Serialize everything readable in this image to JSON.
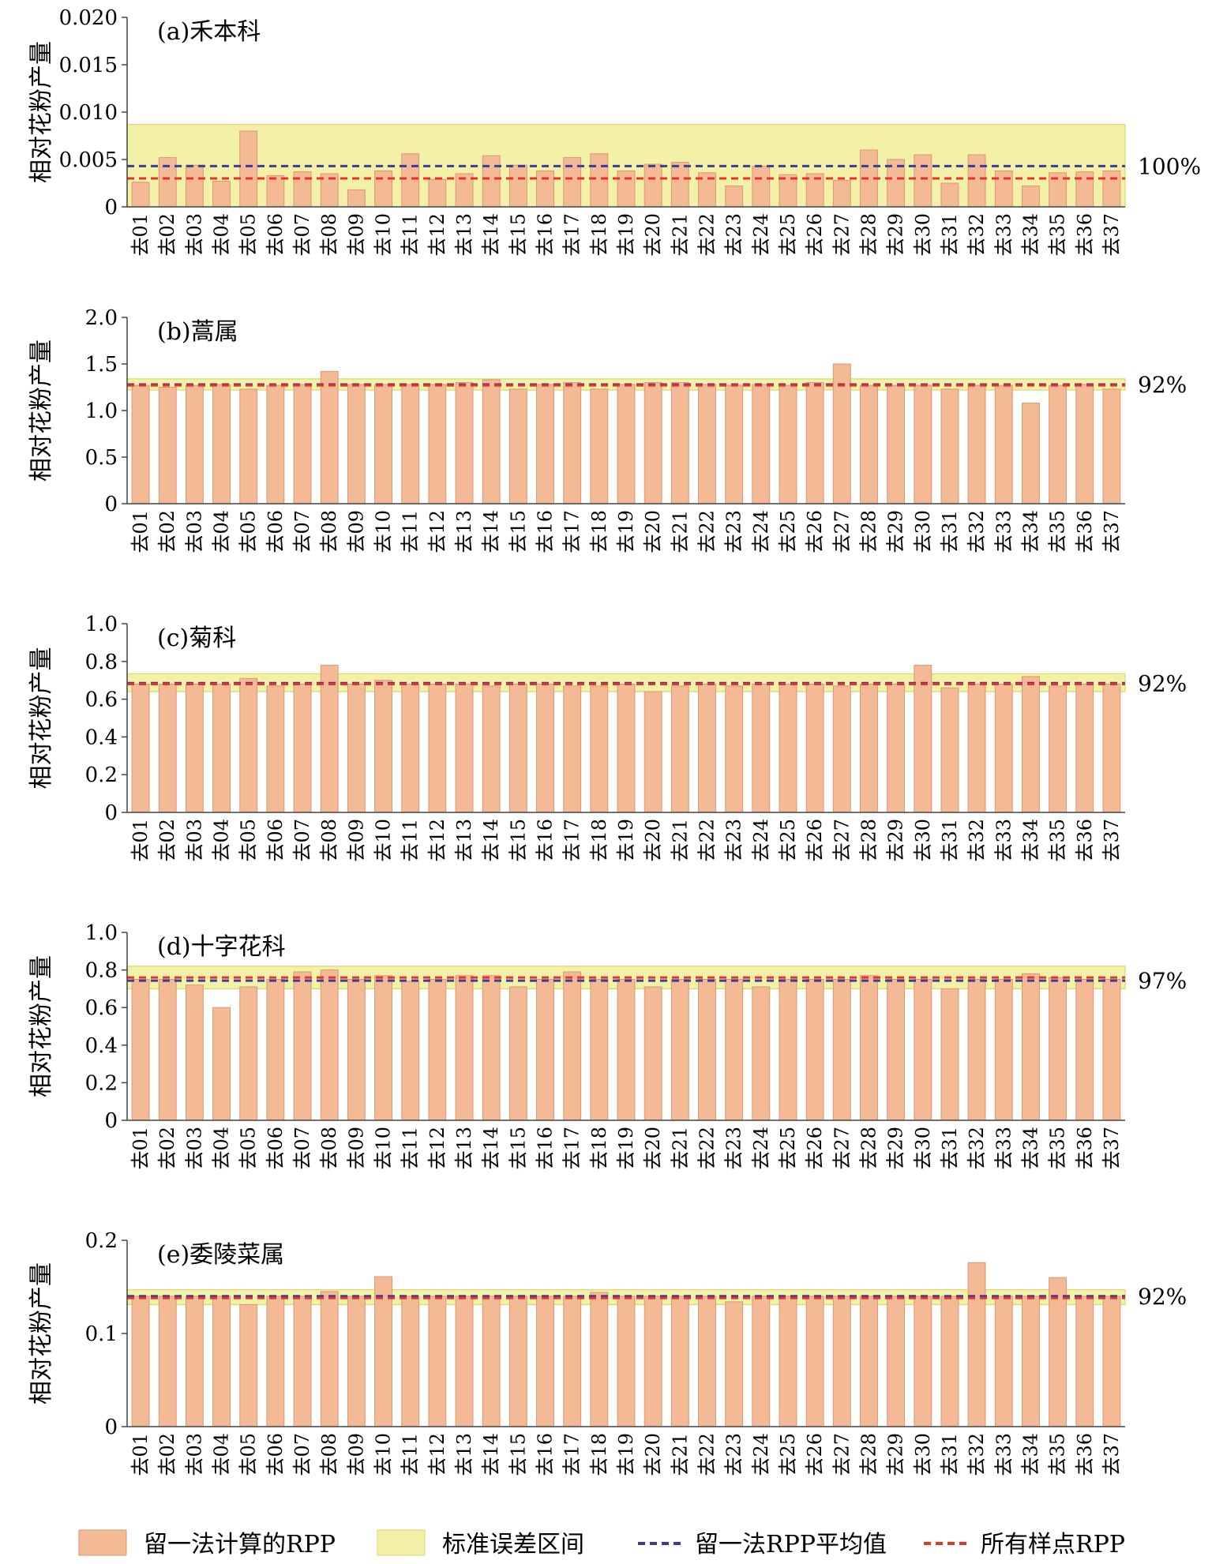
{
  "colors": {
    "bar": "#f4b995",
    "bar_edge": "#d99870",
    "band": "#f3f0a8",
    "band_edge": "#dcd86e",
    "mean_line": "#3a3c98",
    "all_line": "#e83428",
    "axis": "#444444"
  },
  "legend": {
    "bar_label": "留一法计算的RPP",
    "band_label": "标准误差区间",
    "mean_label": "留一法RPP平均值",
    "all_label": "所有样点RPP"
  },
  "chart_data": [
    {
      "type": "bar",
      "title": "(a)禾本科",
      "ylabel": "相对花粉产量",
      "ylim": [
        0,
        0.02
      ],
      "yticks": [
        "0",
        "0.005",
        "0.010",
        "0.015",
        "0.020"
      ],
      "ytick_values": [
        0,
        0.005,
        0.01,
        0.015,
        0.02
      ],
      "percent_label": "100%",
      "categories": [
        "去01",
        "去02",
        "去03",
        "去04",
        "去05",
        "去06",
        "去07",
        "去08",
        "去09",
        "去10",
        "去11",
        "去12",
        "去13",
        "去14",
        "去15",
        "去16",
        "去17",
        "去18",
        "去19",
        "去20",
        "去21",
        "去22",
        "去23",
        "去24",
        "去25",
        "去26",
        "去27",
        "去28",
        "去29",
        "去30",
        "去31",
        "去32",
        "去33",
        "去34",
        "去35",
        "去36",
        "去37"
      ],
      "values": [
        0.0026,
        0.0052,
        0.0044,
        0.0027,
        0.008,
        0.0033,
        0.0037,
        0.0035,
        0.0018,
        0.0038,
        0.0056,
        0.0029,
        0.0035,
        0.0054,
        0.0044,
        0.0038,
        0.0052,
        0.0056,
        0.0038,
        0.0045,
        0.0047,
        0.0036,
        0.0022,
        0.0043,
        0.0034,
        0.0035,
        0.0028,
        0.006,
        0.005,
        0.0055,
        0.0025,
        0.0055,
        0.0038,
        0.0022,
        0.0036,
        0.0037,
        0.0038
      ],
      "mean_rpp": 0.0043,
      "all_sites_rpp": 0.003,
      "se_band": [
        0,
        0.0087
      ]
    },
    {
      "type": "bar",
      "title": "(b)蒿属",
      "ylabel": "相对花粉产量",
      "ylim": [
        0,
        2.0
      ],
      "yticks": [
        "0",
        "0.5",
        "1.0",
        "1.5",
        "2.0"
      ],
      "ytick_values": [
        0,
        0.5,
        1.0,
        1.5,
        2.0
      ],
      "percent_label": "92%",
      "categories": [
        "去01",
        "去02",
        "去03",
        "去04",
        "去05",
        "去06",
        "去07",
        "去08",
        "去09",
        "去10",
        "去11",
        "去12",
        "去13",
        "去14",
        "去15",
        "去16",
        "去17",
        "去18",
        "去19",
        "去20",
        "去21",
        "去22",
        "去23",
        "去24",
        "去25",
        "去26",
        "去27",
        "去28",
        "去29",
        "去30",
        "去31",
        "去32",
        "去33",
        "去34",
        "去35",
        "去36",
        "去37"
      ],
      "values": [
        1.27,
        1.25,
        1.27,
        1.28,
        1.23,
        1.27,
        1.28,
        1.42,
        1.28,
        1.28,
        1.28,
        1.28,
        1.3,
        1.33,
        1.23,
        1.28,
        1.3,
        1.23,
        1.28,
        1.3,
        1.3,
        1.28,
        1.27,
        1.28,
        1.27,
        1.3,
        1.5,
        1.27,
        1.27,
        1.27,
        1.23,
        1.27,
        1.27,
        1.08,
        1.27,
        1.28,
        1.23
      ],
      "mean_rpp": 1.28,
      "all_sites_rpp": 1.27,
      "se_band": [
        1.22,
        1.34
      ]
    },
    {
      "type": "bar",
      "title": "(c)菊科",
      "ylabel": "相对花粉产量",
      "ylim": [
        0,
        1.0
      ],
      "yticks": [
        "0",
        "0.2",
        "0.4",
        "0.6",
        "0.8",
        "1.0"
      ],
      "ytick_values": [
        0,
        0.2,
        0.4,
        0.6,
        0.8,
        1.0
      ],
      "percent_label": "92%",
      "categories": [
        "去01",
        "去02",
        "去03",
        "去04",
        "去05",
        "去06",
        "去07",
        "去08",
        "去09",
        "去10",
        "去11",
        "去12",
        "去13",
        "去14",
        "去15",
        "去16",
        "去17",
        "去18",
        "去19",
        "去20",
        "去21",
        "去22",
        "去23",
        "去24",
        "去25",
        "去26",
        "去27",
        "去28",
        "去29",
        "去30",
        "去31",
        "去32",
        "去33",
        "去34",
        "去35",
        "去36",
        "去37"
      ],
      "values": [
        0.68,
        0.68,
        0.68,
        0.68,
        0.71,
        0.67,
        0.68,
        0.78,
        0.68,
        0.7,
        0.68,
        0.68,
        0.68,
        0.67,
        0.68,
        0.68,
        0.67,
        0.67,
        0.68,
        0.64,
        0.67,
        0.68,
        0.67,
        0.68,
        0.68,
        0.68,
        0.67,
        0.68,
        0.68,
        0.78,
        0.66,
        0.68,
        0.68,
        0.72,
        0.67,
        0.68,
        0.68
      ],
      "mean_rpp": 0.685,
      "all_sites_rpp": 0.68,
      "se_band": [
        0.64,
        0.735
      ]
    },
    {
      "type": "bar",
      "title": "(d)十字花科",
      "ylabel": "相对花粉产量",
      "ylim": [
        0,
        1.0
      ],
      "yticks": [
        "0",
        "0.2",
        "0.4",
        "0.6",
        "0.8",
        "1.0"
      ],
      "ytick_values": [
        0,
        0.2,
        0.4,
        0.6,
        0.8,
        1.0
      ],
      "percent_label": "97%",
      "categories": [
        "去01",
        "去02",
        "去03",
        "去04",
        "去05",
        "去06",
        "去07",
        "去08",
        "去09",
        "去10",
        "去11",
        "去12",
        "去13",
        "去14",
        "去15",
        "去16",
        "去17",
        "去18",
        "去19",
        "去20",
        "去21",
        "去22",
        "去23",
        "去24",
        "去25",
        "去26",
        "去27",
        "去28",
        "去29",
        "去30",
        "去31",
        "去32",
        "去33",
        "去34",
        "去35",
        "去36",
        "去37"
      ],
      "values": [
        0.75,
        0.75,
        0.72,
        0.6,
        0.71,
        0.75,
        0.79,
        0.8,
        0.75,
        0.77,
        0.74,
        0.75,
        0.77,
        0.77,
        0.71,
        0.75,
        0.79,
        0.75,
        0.75,
        0.71,
        0.75,
        0.75,
        0.75,
        0.71,
        0.75,
        0.75,
        0.75,
        0.77,
        0.75,
        0.75,
        0.7,
        0.75,
        0.75,
        0.78,
        0.76,
        0.75,
        0.75
      ],
      "mean_rpp": 0.743,
      "all_sites_rpp": 0.76,
      "se_band": [
        0.7,
        0.82
      ]
    },
    {
      "type": "bar",
      "title": "(e)委陵菜属",
      "ylabel": "相对花粉产量",
      "ylim": [
        0,
        0.2
      ],
      "yticks": [
        "0",
        "0.1",
        "0.2"
      ],
      "ytick_values": [
        0,
        0.1,
        0.2
      ],
      "percent_label": "92%",
      "categories": [
        "去01",
        "去02",
        "去03",
        "去04",
        "去05",
        "去06",
        "去07",
        "去08",
        "去09",
        "去10",
        "去11",
        "去12",
        "去13",
        "去14",
        "去15",
        "去16",
        "去17",
        "去18",
        "去19",
        "去20",
        "去21",
        "去22",
        "去23",
        "去24",
        "去25",
        "去26",
        "去27",
        "去28",
        "去29",
        "去30",
        "去31",
        "去32",
        "去33",
        "去34",
        "去35",
        "去36",
        "去37"
      ],
      "values": [
        0.14,
        0.14,
        0.14,
        0.14,
        0.131,
        0.14,
        0.14,
        0.145,
        0.14,
        0.161,
        0.14,
        0.14,
        0.14,
        0.14,
        0.14,
        0.14,
        0.14,
        0.144,
        0.14,
        0.14,
        0.14,
        0.14,
        0.134,
        0.14,
        0.14,
        0.14,
        0.14,
        0.14,
        0.14,
        0.14,
        0.14,
        0.176,
        0.14,
        0.14,
        0.16,
        0.14,
        0.14
      ],
      "mean_rpp": 0.14,
      "all_sites_rpp": 0.138,
      "se_band": [
        0.131,
        0.147
      ]
    }
  ]
}
